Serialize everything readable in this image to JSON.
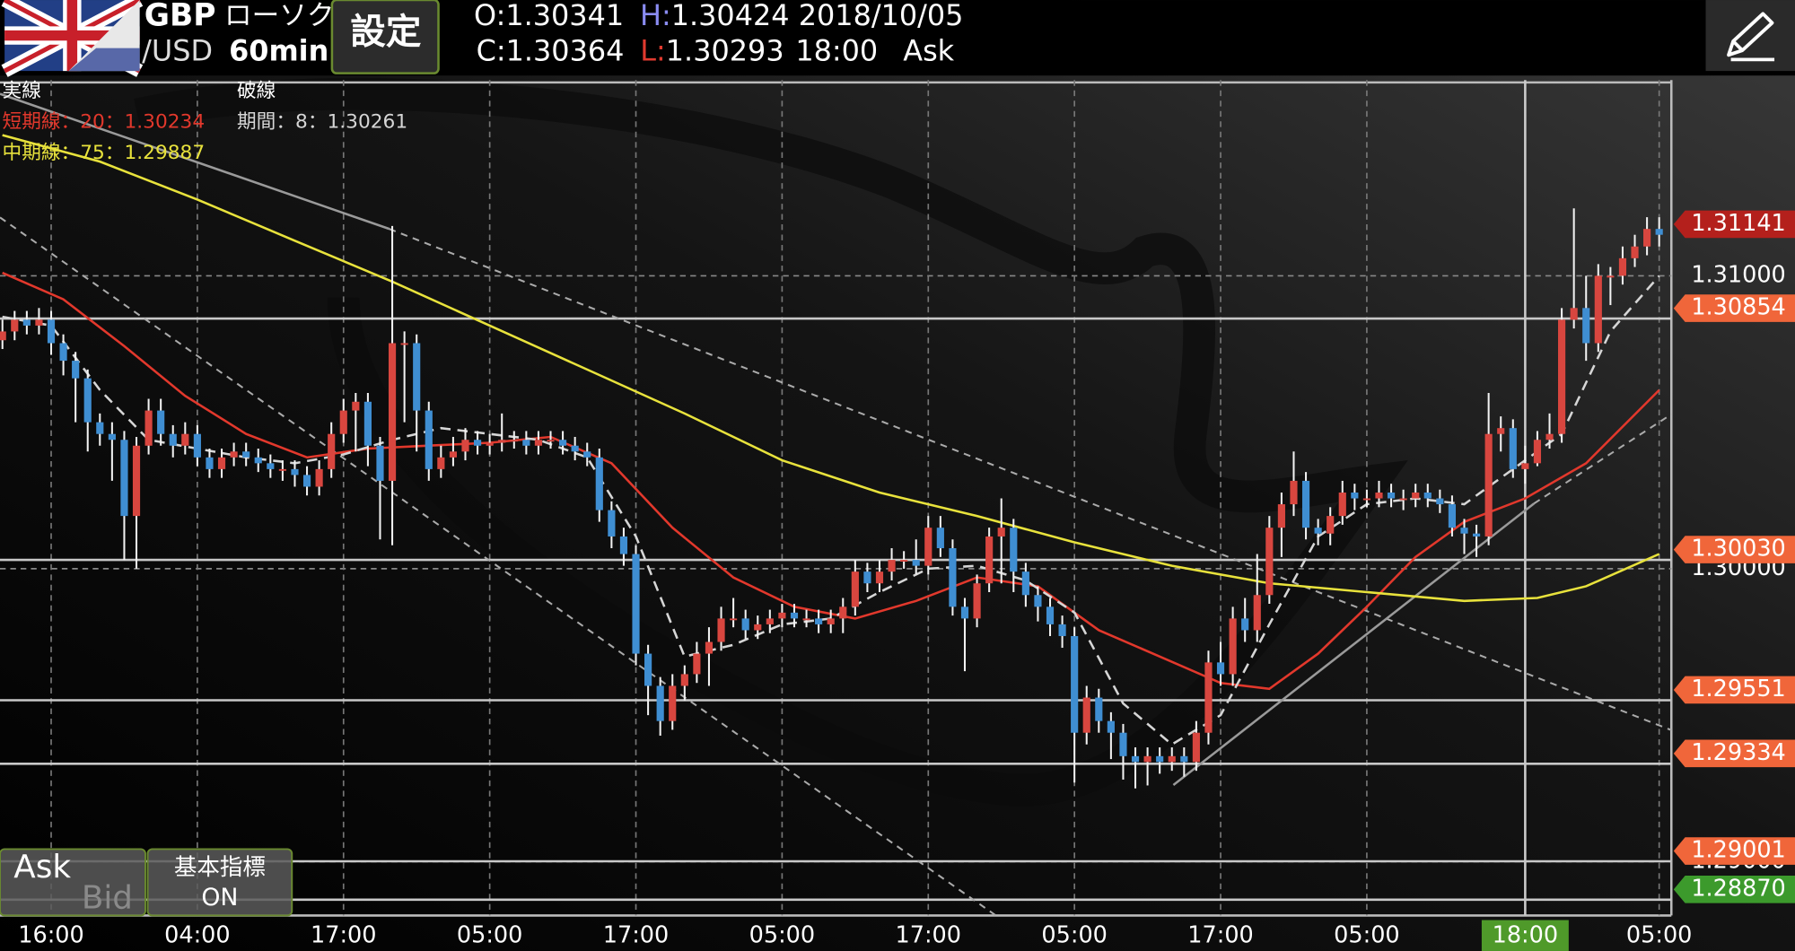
{
  "header": {
    "symbol_base": "GBP",
    "chart_kind": "ローソク",
    "symbol_quote": "/USD",
    "timeframe": "60min",
    "settings": "設定",
    "ohlc": {
      "open_label": "O:",
      "open": "1.30341",
      "high_label": "H:",
      "high": "1.30424",
      "date": "2018/10/05",
      "close_label": "C:",
      "close": "1.30364",
      "low_label": "L:",
      "low": "1.30293",
      "time": "18:00",
      "side": "Ask"
    }
  },
  "footer_buttons": {
    "ask": "Ask",
    "bid": "Bid",
    "indicator": "基本指標",
    "indicator_state": "ON"
  },
  "chart_data": {
    "type": "candlestick",
    "up_color": "#d8463f",
    "down_color": "#3f8ed2",
    "grid": true,
    "legend_headers": [
      "実線",
      "破線"
    ],
    "xlim": [
      -0.2,
      137
    ],
    "ylim": [
      1.28816,
      1.31668
    ],
    "xticks": [
      {
        "value": 4,
        "label": "16:00"
      },
      {
        "value": 16,
        "label": "04:00"
      },
      {
        "value": 28,
        "label": "17:00"
      },
      {
        "value": 40,
        "label": "05:00"
      },
      {
        "value": 52,
        "label": "17:00"
      },
      {
        "value": 64,
        "label": "05:00"
      },
      {
        "value": 76,
        "label": "17:00"
      },
      {
        "value": 88,
        "label": "05:00"
      },
      {
        "value": 100,
        "label": "17:00"
      },
      {
        "value": 112,
        "label": "05:00"
      },
      {
        "value": 136,
        "label": "05:00"
      }
    ],
    "cursor": {
      "value": 125,
      "label": "18:00"
    },
    "yticks": [
      {
        "value": 1.31,
        "label": "1.31000"
      },
      {
        "value": 1.3,
        "label": "1.30000"
      },
      {
        "value": 1.29,
        "label": "1.29000"
      }
    ],
    "levels": [
      {
        "value": 1.31141,
        "color": "#b4201c",
        "line": false
      },
      {
        "value": 1.30854,
        "color": "#f0663a",
        "line": true
      },
      {
        "value": 1.3003,
        "label": "1.30030",
        "color": "#f0663a",
        "line": true
      },
      {
        "value": 1.29551,
        "color": "#f0663a",
        "line": true
      },
      {
        "value": 1.29334,
        "color": "#f0663a",
        "line": true
      },
      {
        "value": 1.29001,
        "color": "#f0663a",
        "line": true
      },
      {
        "value": 1.2887,
        "label": "1.28870",
        "color": "#3c9a2c",
        "line": true
      }
    ],
    "open": [
      1.3078,
      1.3081,
      1.3085,
      1.3083,
      1.3085,
      1.3077,
      1.3071,
      1.3065,
      1.305,
      1.3046,
      1.3044,
      1.3018,
      1.3042,
      1.3054,
      1.3046,
      1.3042,
      1.3046,
      1.3038,
      1.3034,
      1.3038,
      1.304,
      1.3038,
      1.3036,
      1.3034,
      1.3034,
      1.3032,
      1.3028,
      1.3034,
      1.3046,
      1.3054,
      1.3057,
      1.3042,
      1.303,
      1.3077,
      1.3077,
      1.3054,
      1.3034,
      1.3038,
      1.304,
      1.3044,
      1.3042,
      1.3043,
      1.3044,
      1.3044,
      1.3042,
      1.3044,
      1.3044,
      1.3042,
      1.304,
      1.3038,
      1.302,
      1.3011,
      1.3005,
      1.2971,
      1.296,
      1.2948,
      1.296,
      1.2964,
      1.2971,
      1.2975,
      1.2983,
      1.2983,
      1.2979,
      1.2981,
      1.2983,
      1.2985,
      1.2983,
      1.2983,
      1.2981,
      1.2983,
      1.2987,
      1.2999,
      1.2995,
      1.2999,
      1.3003,
      1.3003,
      1.3001,
      1.3014,
      1.3007,
      1.2987,
      1.2983,
      1.2995,
      1.3011,
      1.3014,
      1.2999,
      1.2991,
      1.2987,
      1.2981,
      1.2977,
      1.2944,
      1.2956,
      1.2948,
      1.2944,
      1.2936,
      1.2934,
      1.2936,
      1.2934,
      1.2936,
      1.2934,
      1.2944,
      1.2968,
      1.2964,
      1.2983,
      1.2979,
      1.2991,
      1.3014,
      1.3022,
      1.303,
      1.3014,
      1.3012,
      1.3018,
      1.3026,
      1.3024,
      1.3024,
      1.3026,
      1.3024,
      1.3024,
      1.3026,
      1.3024,
      1.3022,
      1.3014,
      1.3012,
      1.3011,
      1.3046,
      1.3048,
      1.3034,
      1.3036,
      1.3044,
      1.3046,
      1.3085,
      1.3089,
      1.3077,
      1.31,
      1.31,
      1.3106,
      1.311,
      1.3116
    ],
    "high": [
      1.3085,
      1.3088,
      1.3088,
      1.3089,
      1.3088,
      1.308,
      1.3074,
      1.3068,
      1.3053,
      1.305,
      1.3047,
      1.3045,
      1.3058,
      1.3058,
      1.3049,
      1.305,
      1.3049,
      1.3041,
      1.3041,
      1.3043,
      1.3043,
      1.3041,
      1.3039,
      1.3037,
      1.3037,
      1.3035,
      1.3037,
      1.305,
      1.3058,
      1.306,
      1.306,
      1.3045,
      1.3117,
      1.3081,
      1.308,
      1.3057,
      1.3042,
      1.3045,
      1.3048,
      1.3047,
      1.3046,
      1.3053,
      1.3047,
      1.3047,
      1.3047,
      1.3047,
      1.3047,
      1.3045,
      1.3043,
      1.3041,
      1.3023,
      1.3014,
      1.3008,
      1.2974,
      1.2963,
      1.2964,
      1.2967,
      1.2975,
      1.298,
      1.2987,
      1.299,
      1.2986,
      1.2984,
      1.2986,
      1.2988,
      1.2988,
      1.2986,
      1.2986,
      1.2986,
      1.299,
      1.3003,
      1.3002,
      1.3003,
      1.3007,
      1.3006,
      1.301,
      1.3018,
      1.3018,
      1.301,
      1.299,
      1.2998,
      1.3014,
      1.3024,
      1.3017,
      1.3002,
      1.2994,
      1.299,
      1.2984,
      1.298,
      1.296,
      1.2959,
      1.2951,
      1.2947,
      1.2939,
      1.2939,
      1.2939,
      1.2939,
      1.2939,
      1.2948,
      1.2972,
      1.2975,
      1.2987,
      1.299,
      1.3005,
      1.3018,
      1.3026,
      1.304,
      1.3033,
      1.3017,
      1.3021,
      1.303,
      1.3029,
      1.3027,
      1.303,
      1.3029,
      1.3027,
      1.3029,
      1.3029,
      1.3027,
      1.3025,
      1.3017,
      1.3015,
      1.306,
      1.3052,
      1.3051,
      1.3042,
      1.3047,
      1.3053,
      1.3089,
      1.3123,
      1.31,
      1.3104,
      1.3103,
      1.311,
      1.3114,
      1.312,
      1.312
    ],
    "low": [
      1.3075,
      1.3078,
      1.308,
      1.308,
      1.3073,
      1.3066,
      1.305,
      1.304,
      1.3042,
      1.303,
      1.3003,
      1.3,
      1.3039,
      1.3042,
      1.3038,
      1.3039,
      1.3035,
      1.3031,
      1.3031,
      1.3035,
      1.3035,
      1.3033,
      1.3031,
      1.303,
      1.3028,
      1.3025,
      1.3025,
      1.3031,
      1.3043,
      1.304,
      1.3035,
      1.301,
      1.3008,
      1.305,
      1.304,
      1.303,
      1.3031,
      1.3035,
      1.3037,
      1.3039,
      1.3039,
      1.304,
      1.3041,
      1.3039,
      1.3039,
      1.3041,
      1.3039,
      1.3037,
      1.3035,
      1.3016,
      1.3007,
      1.3001,
      1.2967,
      1.295,
      1.2943,
      1.2945,
      1.2955,
      1.2961,
      1.296,
      1.2972,
      1.298,
      1.2976,
      1.2976,
      1.2978,
      1.298,
      1.298,
      1.298,
      1.2978,
      1.2978,
      1.2978,
      1.2984,
      1.2992,
      1.2992,
      1.2996,
      1.3,
      1.2998,
      1.2998,
      1.3004,
      1.2984,
      1.2965,
      1.298,
      1.2992,
      1.2995,
      1.2992,
      1.2987,
      1.2982,
      1.2977,
      1.2973,
      1.2927,
      1.294,
      1.2944,
      1.2935,
      1.2928,
      1.2925,
      1.2926,
      1.293,
      1.2931,
      1.2929,
      1.2931,
      1.294,
      1.296,
      1.296,
      1.2975,
      1.2975,
      1.2988,
      1.3004,
      1.3018,
      1.301,
      1.3008,
      1.3008,
      1.3015,
      1.302,
      1.3021,
      1.3021,
      1.3021,
      1.302,
      1.3021,
      1.3021,
      1.3019,
      1.3011,
      1.3005,
      1.3004,
      1.3008,
      1.304,
      1.3031,
      1.3029,
      1.3035,
      1.3041,
      1.3043,
      1.3082,
      1.3071,
      1.3074,
      1.309,
      1.3097,
      1.3103,
      1.3107,
      1.311
    ],
    "close": [
      1.3081,
      1.3085,
      1.3083,
      1.3085,
      1.3077,
      1.3071,
      1.3065,
      1.305,
      1.3046,
      1.3044,
      1.3018,
      1.3042,
      1.3054,
      1.3046,
      1.3042,
      1.3046,
      1.3038,
      1.3034,
      1.3038,
      1.304,
      1.3038,
      1.3036,
      1.3034,
      1.3034,
      1.3032,
      1.3028,
      1.3034,
      1.3046,
      1.3054,
      1.3057,
      1.3042,
      1.303,
      1.3077,
      1.3077,
      1.3054,
      1.3034,
      1.3038,
      1.304,
      1.3044,
      1.3042,
      1.3043,
      1.3044,
      1.3044,
      1.3042,
      1.3044,
      1.3044,
      1.3042,
      1.304,
      1.3038,
      1.302,
      1.3011,
      1.3005,
      1.2971,
      1.296,
      1.2948,
      1.296,
      1.2964,
      1.2971,
      1.2975,
      1.2983,
      1.2983,
      1.2979,
      1.2981,
      1.2983,
      1.2985,
      1.2983,
      1.2983,
      1.2981,
      1.2983,
      1.2987,
      1.2999,
      1.2995,
      1.2999,
      1.3003,
      1.3003,
      1.3001,
      1.3014,
      1.3007,
      1.2987,
      1.2983,
      1.2995,
      1.3011,
      1.3014,
      1.2999,
      1.2991,
      1.2987,
      1.2981,
      1.2977,
      1.2944,
      1.2956,
      1.2948,
      1.2944,
      1.2936,
      1.2934,
      1.2936,
      1.2934,
      1.2936,
      1.2934,
      1.2944,
      1.2968,
      1.2964,
      1.2983,
      1.2979,
      1.2991,
      1.3014,
      1.3022,
      1.303,
      1.3014,
      1.3012,
      1.3018,
      1.3026,
      1.3024,
      1.3024,
      1.3026,
      1.3024,
      1.3024,
      1.3026,
      1.3024,
      1.3022,
      1.3014,
      1.3012,
      1.3011,
      1.3046,
      1.3048,
      1.3034,
      1.3036,
      1.3044,
      1.3046,
      1.3085,
      1.3089,
      1.3077,
      1.31,
      1.31,
      1.3106,
      1.311,
      1.3116,
      1.3114
    ],
    "series": [
      {
        "name": "短期線：20：1.30234",
        "color": "#e2382c",
        "x": [
          0,
          5,
          10,
          15,
          20,
          25,
          30,
          35,
          40,
          45,
          50,
          55,
          60,
          65,
          70,
          75,
          80,
          85,
          90,
          95,
          100,
          104,
          108,
          112,
          116,
          120,
          125,
          130,
          136
        ],
        "values": [
          1.3101,
          1.3092,
          1.3076,
          1.3059,
          1.3046,
          1.3038,
          1.3041,
          1.3042,
          1.3043,
          1.3045,
          1.3036,
          1.3014,
          1.2997,
          1.2987,
          1.2983,
          1.2989,
          1.2997,
          1.2994,
          1.2979,
          1.297,
          1.2961,
          1.2959,
          1.2971,
          1.2987,
          1.3004,
          1.3016,
          1.3024,
          1.3036,
          1.3061
        ]
      },
      {
        "name": "中期線：75：1.29887",
        "color": "#e8e23c",
        "x": [
          0,
          8,
          16,
          24,
          32,
          40,
          48,
          56,
          64,
          72,
          80,
          88,
          96,
          104,
          112,
          120,
          126,
          130,
          136
        ],
        "values": [
          1.3148,
          1.3139,
          1.3126,
          1.3112,
          1.3098,
          1.3083,
          1.3068,
          1.3053,
          1.3037,
          1.3026,
          1.3018,
          1.3009,
          1.3001,
          1.2995,
          1.2992,
          1.2989,
          1.299,
          1.2994,
          1.3005
        ]
      },
      {
        "name": "期間：8：1.30261",
        "color": "#d6d6d6",
        "dash": true,
        "x": [
          0,
          4,
          8,
          12,
          16,
          20,
          24,
          28,
          32,
          36,
          40,
          44,
          48,
          52,
          56,
          60,
          64,
          68,
          72,
          76,
          80,
          84,
          88,
          92,
          96,
          100,
          104,
          108,
          112,
          116,
          120,
          124,
          128,
          132,
          136
        ],
        "values": [
          1.3086,
          1.3083,
          1.3061,
          1.3044,
          1.3041,
          1.3038,
          1.3036,
          1.3039,
          1.3044,
          1.3048,
          1.3046,
          1.3044,
          1.3038,
          1.3011,
          1.297,
          1.2974,
          1.2981,
          1.2983,
          1.2992,
          1.3,
          1.3001,
          1.2996,
          1.2985,
          1.2954,
          1.294,
          1.295,
          1.2981,
          1.3011,
          1.3022,
          1.3024,
          1.3022,
          1.3034,
          1.3046,
          1.3081,
          1.31
        ]
      }
    ]
  }
}
